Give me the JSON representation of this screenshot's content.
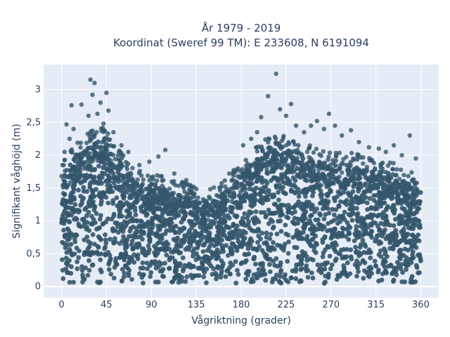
{
  "chart_data": {
    "type": "scatter",
    "title_lines": [
      "År 1979 - 2019",
      "Koordinat (Sweref 99 TM): E 233608, N 6191094"
    ],
    "xlabel": "Vågriktning (grader)",
    "ylabel": "Signifikant våghöjd (m)",
    "xlim": [
      -18,
      378
    ],
    "ylim": [
      -0.17,
      3.38
    ],
    "x_ticks": [
      0,
      45,
      90,
      135,
      180,
      225,
      270,
      315,
      360
    ],
    "x_tick_labels": [
      "0",
      "45",
      "90",
      "135",
      "180",
      "225",
      "270",
      "315",
      "360"
    ],
    "y_ticks": [
      0,
      0.5,
      1,
      1.5,
      2,
      2.5,
      3
    ],
    "y_tick_labels": [
      "0",
      "0,5",
      "1",
      "1,5",
      "2",
      "2,5",
      "3"
    ],
    "grid": true,
    "marker_color": "#34566b",
    "background_color": "#e5ecf6",
    "envelope_x": [
      0,
      10,
      20,
      30,
      40,
      45,
      50,
      60,
      70,
      80,
      90,
      100,
      110,
      120,
      130,
      140,
      150,
      160,
      170,
      180,
      190,
      200,
      210,
      220,
      230,
      240,
      250,
      260,
      270,
      280,
      290,
      300,
      310,
      320,
      330,
      340,
      350,
      360
    ],
    "envelope_y": [
      1.7,
      1.9,
      2.05,
      2.2,
      2.25,
      2.2,
      2.0,
      1.85,
      1.65,
      1.55,
      1.5,
      1.5,
      1.45,
      1.4,
      1.35,
      1.3,
      1.3,
      1.4,
      1.55,
      1.7,
      1.85,
      2.0,
      2.1,
      2.15,
      2.05,
      2.0,
      1.95,
      1.9,
      1.85,
      1.85,
      1.85,
      1.8,
      1.75,
      1.75,
      1.7,
      1.65,
      1.55,
      1.5
    ],
    "outliers": [
      {
        "x": 29,
        "y": 3.15
      },
      {
        "x": 33,
        "y": 3.1
      },
      {
        "x": 31,
        "y": 2.92
      },
      {
        "x": 39,
        "y": 2.8
      },
      {
        "x": 45,
        "y": 2.95
      },
      {
        "x": 47,
        "y": 2.68
      },
      {
        "x": 20,
        "y": 2.77
      },
      {
        "x": 10,
        "y": 2.76
      },
      {
        "x": 5,
        "y": 2.47
      },
      {
        "x": 12,
        "y": 2.4
      },
      {
        "x": 8,
        "y": 2.25
      },
      {
        "x": 27,
        "y": 2.6
      },
      {
        "x": 36,
        "y": 2.63
      },
      {
        "x": 42,
        "y": 2.48
      },
      {
        "x": 52,
        "y": 2.35
      },
      {
        "x": 60,
        "y": 2.15
      },
      {
        "x": 67,
        "y": 2.05
      },
      {
        "x": 78,
        "y": 1.85
      },
      {
        "x": 88,
        "y": 1.9
      },
      {
        "x": 97,
        "y": 1.98
      },
      {
        "x": 104,
        "y": 2.08
      },
      {
        "x": 113,
        "y": 1.72
      },
      {
        "x": 125,
        "y": 1.62
      },
      {
        "x": 168,
        "y": 1.72
      },
      {
        "x": 182,
        "y": 2.15
      },
      {
        "x": 190,
        "y": 2.25
      },
      {
        "x": 196,
        "y": 2.35
      },
      {
        "x": 200,
        "y": 2.58
      },
      {
        "x": 207,
        "y": 2.9
      },
      {
        "x": 215,
        "y": 3.24
      },
      {
        "x": 219,
        "y": 2.7
      },
      {
        "x": 225,
        "y": 2.6
      },
      {
        "x": 230,
        "y": 2.78
      },
      {
        "x": 235,
        "y": 2.45
      },
      {
        "x": 243,
        "y": 2.35
      },
      {
        "x": 250,
        "y": 2.45
      },
      {
        "x": 256,
        "y": 2.52
      },
      {
        "x": 263,
        "y": 2.4
      },
      {
        "x": 268,
        "y": 2.63
      },
      {
        "x": 274,
        "y": 2.45
      },
      {
        "x": 281,
        "y": 2.3
      },
      {
        "x": 290,
        "y": 2.38
      },
      {
        "x": 298,
        "y": 2.2
      },
      {
        "x": 308,
        "y": 2.12
      },
      {
        "x": 318,
        "y": 2.1
      },
      {
        "x": 325,
        "y": 2.05
      },
      {
        "x": 333,
        "y": 2.15
      },
      {
        "x": 341,
        "y": 2.0
      },
      {
        "x": 349,
        "y": 2.3
      },
      {
        "x": 355,
        "y": 1.95
      },
      {
        "x": 1,
        "y": 1.85
      },
      {
        "x": 3,
        "y": 2.05
      }
    ]
  }
}
